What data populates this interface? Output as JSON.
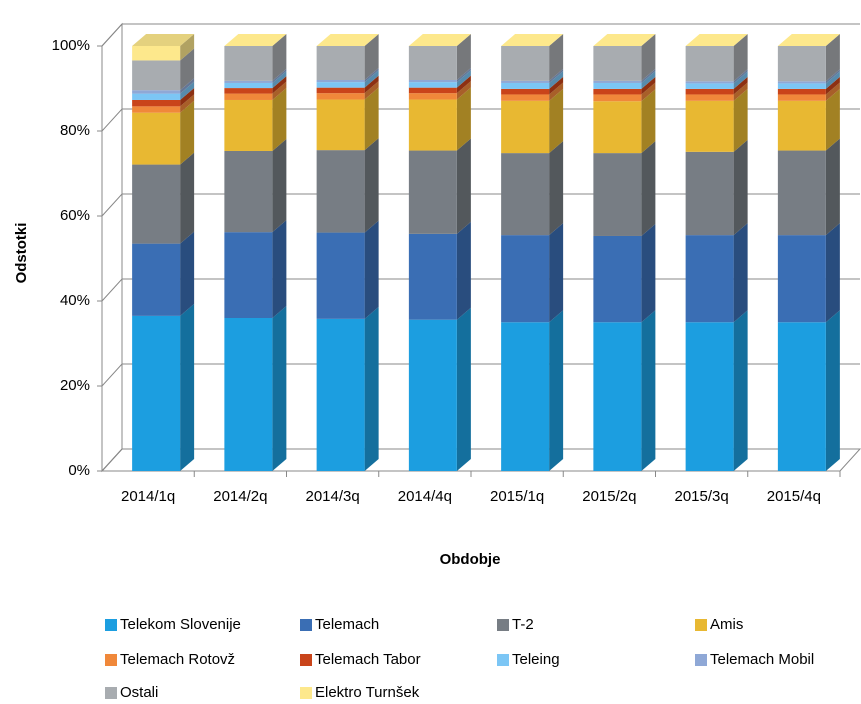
{
  "chart_data": {
    "type": "bar3d_stacked",
    "y_label": "Odstotki",
    "x_label": "Obdobje",
    "categories": [
      "2014/1q",
      "2014/2q",
      "2014/3q",
      "2014/4q",
      "2015/1q",
      "2015/2q",
      "2015/3q",
      "2015/4q"
    ],
    "series": [
      {
        "name": "Telekom Slovenije",
        "color": "#1c9ee0",
        "values": [
          36.5,
          36,
          35.8,
          35.6,
          35,
          35,
          35,
          35
        ]
      },
      {
        "name": "Telemach",
        "color": "#3a6eb4",
        "values": [
          17,
          20.2,
          20.3,
          20.2,
          20.5,
          20.3,
          20.5,
          20.5
        ]
      },
      {
        "name": "T-2",
        "color": "#777d84",
        "values": [
          18.6,
          19.1,
          19.4,
          19.6,
          19.3,
          19.5,
          19.6,
          19.9
        ]
      },
      {
        "name": "Amis",
        "color": "#e8b832",
        "values": [
          12.2,
          12,
          11.9,
          12,
          12.3,
          12.2,
          12,
          11.7
        ]
      },
      {
        "name": "Telemach Rotovž",
        "color": "#f0883a",
        "values": [
          1.5,
          1.5,
          1.5,
          1.5,
          1.5,
          1.6,
          1.5,
          1.5
        ]
      },
      {
        "name": "Telemach Tabor",
        "color": "#c9441a",
        "values": [
          1.5,
          1.3,
          1.3,
          1.3,
          1.3,
          1.3,
          1.3,
          1.3
        ]
      },
      {
        "name": "Teleing",
        "color": "#7cc6f5",
        "values": [
          1.5,
          1.2,
          1.3,
          1.3,
          1.4,
          1.4,
          1.3,
          1.3
        ]
      },
      {
        "name": "Telemach Mobil",
        "color": "#8fa8d6",
        "values": [
          0.8,
          0.5,
          0.5,
          0.5,
          0.5,
          0.5,
          0.5,
          0.5
        ]
      },
      {
        "name": "Ostali",
        "color": "#a8acb0",
        "values": [
          7,
          8.2,
          8,
          8,
          8.2,
          8.2,
          8.3,
          8.3
        ]
      },
      {
        "name": "Elektro Turnšek",
        "color": "#fde88c",
        "values": [
          3.4,
          0,
          0,
          0,
          0,
          0,
          0,
          0
        ]
      }
    ],
    "ylim": [
      0,
      100
    ],
    "yticks": [
      {
        "value": 0,
        "label": "0%"
      },
      {
        "value": 20,
        "label": "20%"
      },
      {
        "value": 40,
        "label": "40%"
      },
      {
        "value": 60,
        "label": "60%"
      },
      {
        "value": 80,
        "label": "80%"
      },
      {
        "value": 100,
        "label": "100%"
      }
    ],
    "grid": true,
    "legend": "bottom"
  }
}
